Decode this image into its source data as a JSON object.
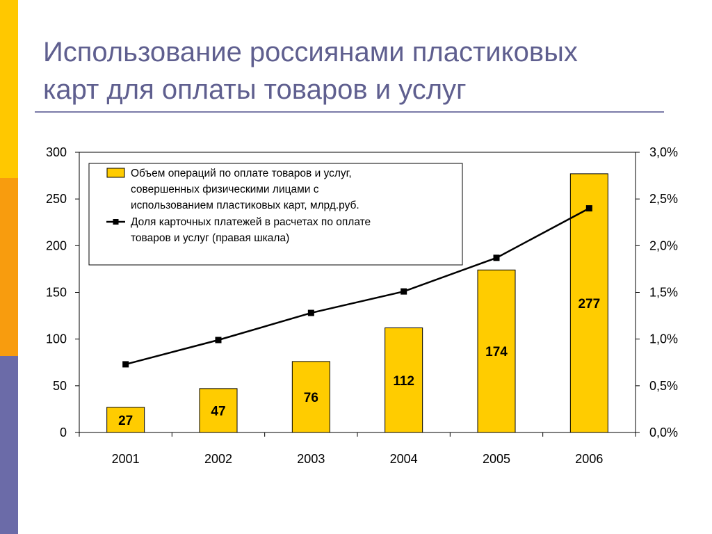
{
  "slide": {
    "title_line1": "Использование россиянами пластиковых",
    "title_line2": "карт для оплаты товаров и услуг"
  },
  "colors": {
    "accent_yellow": "#FFC800",
    "accent_orange": "#F89C0E",
    "accent_purple": "#6B6BA8",
    "bar_fill": "#FFCC00",
    "title_color": "#5F5F8F"
  },
  "chart_data": {
    "type": "bar",
    "categories": [
      "2001",
      "2002",
      "2003",
      "2004",
      "2005",
      "2006"
    ],
    "series": [
      {
        "name": "Объем операций по оплате товаров и услуг, совершенных физическими лицами с использованием пластиковых карт, млрд.руб.",
        "legend_lines": [
          "Объем операций по оплате товаров и услуг,",
          "совершенных физическими лицами с",
          "использованием пластиковых карт, млрд.руб."
        ],
        "kind": "bar",
        "axis": "left",
        "values": [
          27,
          47,
          76,
          112,
          174,
          277
        ],
        "data_labels": [
          "27",
          "47",
          "76",
          "112",
          "174",
          "277"
        ]
      },
      {
        "name": "Доля карточных платежей в расчетах по оплате товаров и услуг (правая шкала)",
        "legend_lines": [
          "Доля карточных платежей в расчетах по оплате",
          "товаров и услуг (правая шкала)"
        ],
        "kind": "line",
        "axis": "right",
        "values": [
          0.73,
          0.99,
          1.28,
          1.51,
          1.87,
          2.4
        ]
      }
    ],
    "y_left": {
      "min": 0,
      "max": 300,
      "ticks": [
        "0",
        "50",
        "100",
        "150",
        "200",
        "250",
        "300"
      ]
    },
    "y_right": {
      "min": 0,
      "max": 3,
      "ticks": [
        "0,0%",
        "0,5%",
        "1,0%",
        "1,5%",
        "2,0%",
        "2,5%",
        "3,0%"
      ]
    },
    "grid": false,
    "legend_position": "top-left"
  }
}
